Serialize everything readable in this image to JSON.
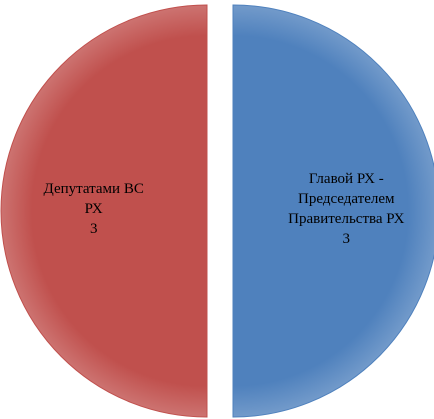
{
  "chart_data": {
    "type": "pie",
    "categories": [
      "Главой РХ - Председателем Правительства РХ",
      "Депутатами ВС РХ"
    ],
    "values": [
      3,
      3
    ],
    "colors": [
      "#4f81bd",
      "#c0504d"
    ],
    "exploded": true
  }
}
